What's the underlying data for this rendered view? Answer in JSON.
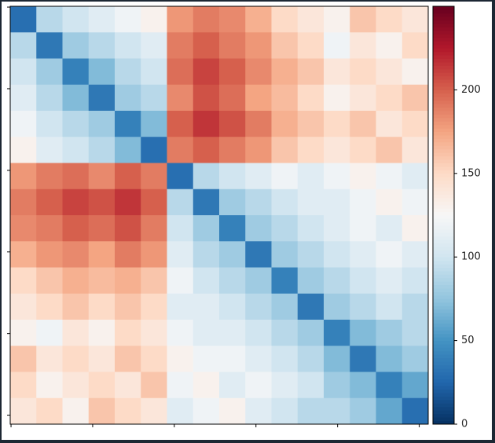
{
  "chart_data": {
    "type": "heatmap",
    "colormap": "RdBu_r",
    "xlim": [
      -0.5,
      255.5
    ],
    "ylim": [
      255.5,
      -0.5
    ],
    "xticks": [
      0,
      50,
      100,
      150,
      200,
      250
    ],
    "yticks": [
      0,
      50,
      100,
      150,
      200,
      250
    ],
    "clim": [
      0,
      250
    ],
    "colorbar_ticks": [
      0,
      50,
      100,
      150,
      200
    ],
    "z": [
      [
        30,
        90,
        100,
        110,
        120,
        130,
        180,
        190,
        185,
        170,
        150,
        140,
        130,
        160,
        150,
        140
      ],
      [
        90,
        35,
        80,
        90,
        100,
        110,
        190,
        200,
        190,
        180,
        160,
        150,
        120,
        140,
        130,
        150
      ],
      [
        100,
        80,
        40,
        70,
        90,
        100,
        195,
        210,
        200,
        185,
        170,
        160,
        140,
        150,
        140,
        130
      ],
      [
        110,
        90,
        70,
        35,
        80,
        90,
        185,
        205,
        195,
        175,
        165,
        150,
        130,
        140,
        150,
        160
      ],
      [
        120,
        100,
        90,
        80,
        40,
        70,
        200,
        215,
        205,
        190,
        170,
        160,
        150,
        160,
        140,
        150
      ],
      [
        130,
        110,
        100,
        90,
        70,
        30,
        190,
        200,
        190,
        180,
        160,
        150,
        140,
        150,
        160,
        140
      ],
      [
        180,
        190,
        195,
        185,
        200,
        190,
        30,
        90,
        100,
        110,
        120,
        110,
        120,
        130,
        120,
        110
      ],
      [
        190,
        200,
        210,
        205,
        215,
        200,
        90,
        35,
        80,
        90,
        100,
        110,
        110,
        120,
        130,
        120
      ],
      [
        185,
        190,
        200,
        195,
        205,
        190,
        100,
        80,
        40,
        80,
        90,
        100,
        110,
        120,
        110,
        130
      ],
      [
        170,
        180,
        185,
        175,
        190,
        180,
        110,
        90,
        80,
        35,
        80,
        90,
        100,
        110,
        120,
        110
      ],
      [
        150,
        160,
        170,
        165,
        170,
        160,
        120,
        100,
        90,
        80,
        40,
        80,
        90,
        100,
        110,
        100
      ],
      [
        140,
        150,
        160,
        150,
        160,
        150,
        110,
        110,
        100,
        90,
        80,
        35,
        80,
        90,
        100,
        90
      ],
      [
        130,
        120,
        140,
        130,
        150,
        140,
        120,
        110,
        110,
        100,
        90,
        80,
        40,
        70,
        80,
        90
      ],
      [
        160,
        140,
        150,
        140,
        160,
        150,
        130,
        120,
        120,
        110,
        100,
        90,
        70,
        35,
        70,
        80
      ],
      [
        150,
        130,
        140,
        150,
        140,
        160,
        120,
        130,
        110,
        120,
        110,
        100,
        80,
        70,
        40,
        60
      ],
      [
        140,
        150,
        130,
        160,
        150,
        140,
        110,
        120,
        130,
        110,
        100,
        90,
        90,
        80,
        60,
        30
      ]
    ]
  }
}
